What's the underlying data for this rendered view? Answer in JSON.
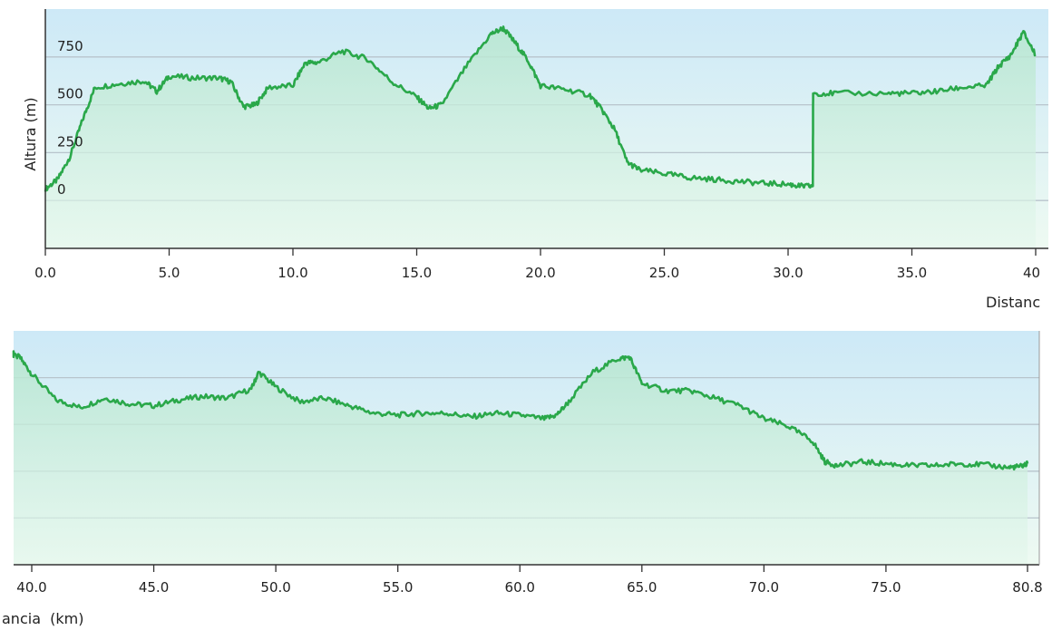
{
  "chart_data": [
    {
      "type": "area",
      "ylabel": "Altura (m)",
      "xlabel": "Distanc",
      "xlim": [
        0,
        40
      ],
      "ylim": [
        -250,
        1000
      ],
      "y_ticks": [
        "750",
        "500",
        "250",
        "0"
      ],
      "x_ticks": [
        "0.0",
        "5.0",
        "10.0",
        "15.0",
        "20.0",
        "25.0",
        "30.0",
        "35.0",
        "40"
      ],
      "grid": true,
      "x": [
        0,
        0.5,
        1,
        1.5,
        2,
        3,
        4,
        4.5,
        5,
        6,
        7,
        7.5,
        8,
        8.5,
        9,
        10,
        10.5,
        11,
        12,
        13,
        14,
        15,
        15.5,
        16,
        17,
        18,
        18.5,
        19,
        19.5,
        20,
        21,
        22,
        22.5,
        23,
        23.5,
        24,
        25,
        26,
        27,
        28,
        29,
        30,
        30.5,
        31,
        31.01,
        32,
        34,
        35,
        36,
        37,
        38,
        38.5,
        39,
        39.5,
        40
      ],
      "values": [
        60,
        110,
        230,
        420,
        590,
        610,
        625,
        570,
        650,
        640,
        640,
        620,
        490,
        500,
        590,
        600,
        720,
        720,
        780,
        740,
        620,
        540,
        480,
        500,
        700,
        870,
        900,
        820,
        730,
        600,
        580,
        550,
        470,
        370,
        200,
        160,
        140,
        120,
        110,
        100,
        90,
        85,
        75,
        75,
        560,
        560,
        560,
        560,
        570,
        590,
        600,
        700,
        760,
        880,
        760
      ]
    },
    {
      "type": "area",
      "xlabel": "ancia  (km)",
      "xlim": [
        38.8,
        80.8
      ],
      "x_ticks": [
        "40.0",
        "45.0",
        "50.0",
        "55.0",
        "60.0",
        "65.0",
        "70.0",
        "75.0",
        "80.8"
      ],
      "grid": true,
      "x": [
        38.8,
        39.5,
        40,
        41,
        42,
        43,
        44,
        45,
        46,
        47,
        48,
        49,
        49.3,
        50,
        51,
        52,
        53,
        54,
        55,
        56,
        57,
        58,
        59,
        60,
        61,
        61.5,
        62,
        63,
        64,
        64.5,
        65,
        66,
        67,
        68,
        69,
        70,
        71,
        72,
        72.5,
        73,
        74,
        75,
        76,
        77,
        78,
        79,
        80,
        80.5,
        80.8
      ],
      "values": [
        880,
        860,
        770,
        630,
        590,
        640,
        610,
        600,
        630,
        650,
        640,
        690,
        780,
        700,
        620,
        640,
        600,
        560,
        550,
        560,
        560,
        540,
        560,
        550,
        530,
        550,
        620,
        780,
        850,
        860,
        720,
        680,
        680,
        640,
        600,
        530,
        490,
        410,
        300,
        280,
        300,
        290,
        280,
        280,
        290,
        285,
        270,
        275,
        290
      ]
    }
  ],
  "colors": {
    "line": "#2aa84a",
    "grid": "#b8c4cc",
    "axis": "#333333",
    "bg_top": "#cde9f7",
    "bg_bottom": "#eefaf2",
    "fill_top": "#b6e6cf",
    "fill_bottom": "#e4f7ec"
  }
}
